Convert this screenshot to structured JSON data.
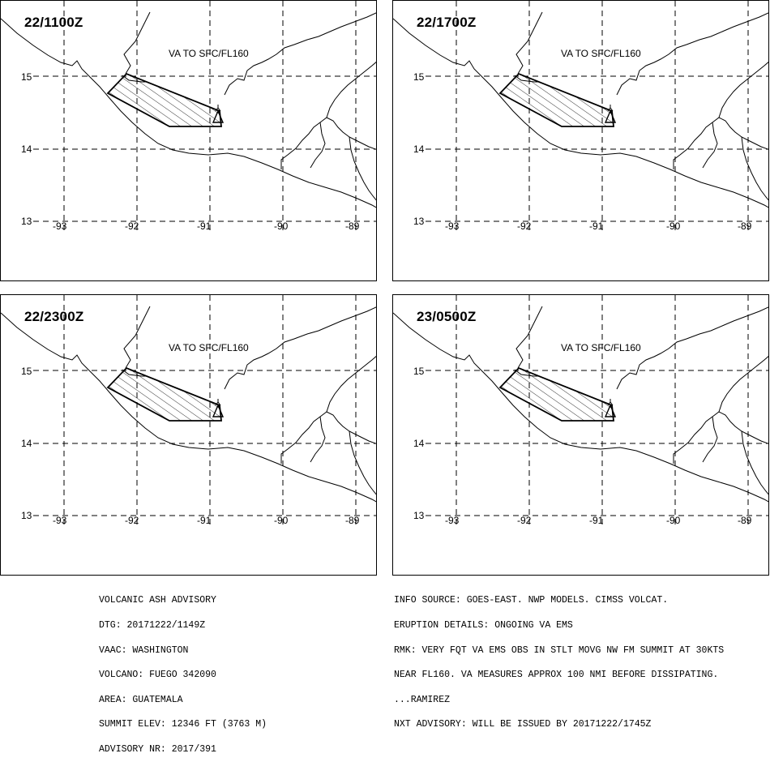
{
  "panels": [
    {
      "time": "22/1100Z",
      "label": "VA TO SFC/FL160"
    },
    {
      "time": "22/1700Z",
      "label": "VA TO SFC/FL160"
    },
    {
      "time": "22/2300Z",
      "label": "VA TO SFC/FL160"
    },
    {
      "time": "23/0500Z",
      "label": "VA TO SFC/FL160"
    }
  ],
  "lat_labels": [
    "15",
    "14",
    "13"
  ],
  "lon_labels": [
    "-93",
    "-92",
    "-91",
    "-90",
    "-89"
  ],
  "footer_left": [
    "VOLCANIC ASH ADVISORY",
    "DTG: 20171222/1149Z",
    "VAAC: WASHINGTON",
    "VOLCANO: FUEGO 342090",
    "AREA: GUATEMALA",
    "SUMMIT ELEV: 12346 FT (3763 M)",
    "ADVISORY NR: 2017/391"
  ],
  "footer_right": [
    "INFO SOURCE: GOES-EAST. NWP MODELS. CIMSS VOLCAT.",
    "ERUPTION DETAILS: ONGOING VA EMS",
    "RMK: VERY FQT VA EMS OBS IN STLT MOVG NW FM SUMMIT AT 30KTS",
    "NEAR FL160. VA MEASURES APPROX 100 NMI BEFORE DISSIPATING.",
    "...RAMIREZ",
    "NXT ADVISORY: WILL BE ISSUED BY 20171222/1745Z"
  ],
  "volcano_symbol": "volcano-icon"
}
